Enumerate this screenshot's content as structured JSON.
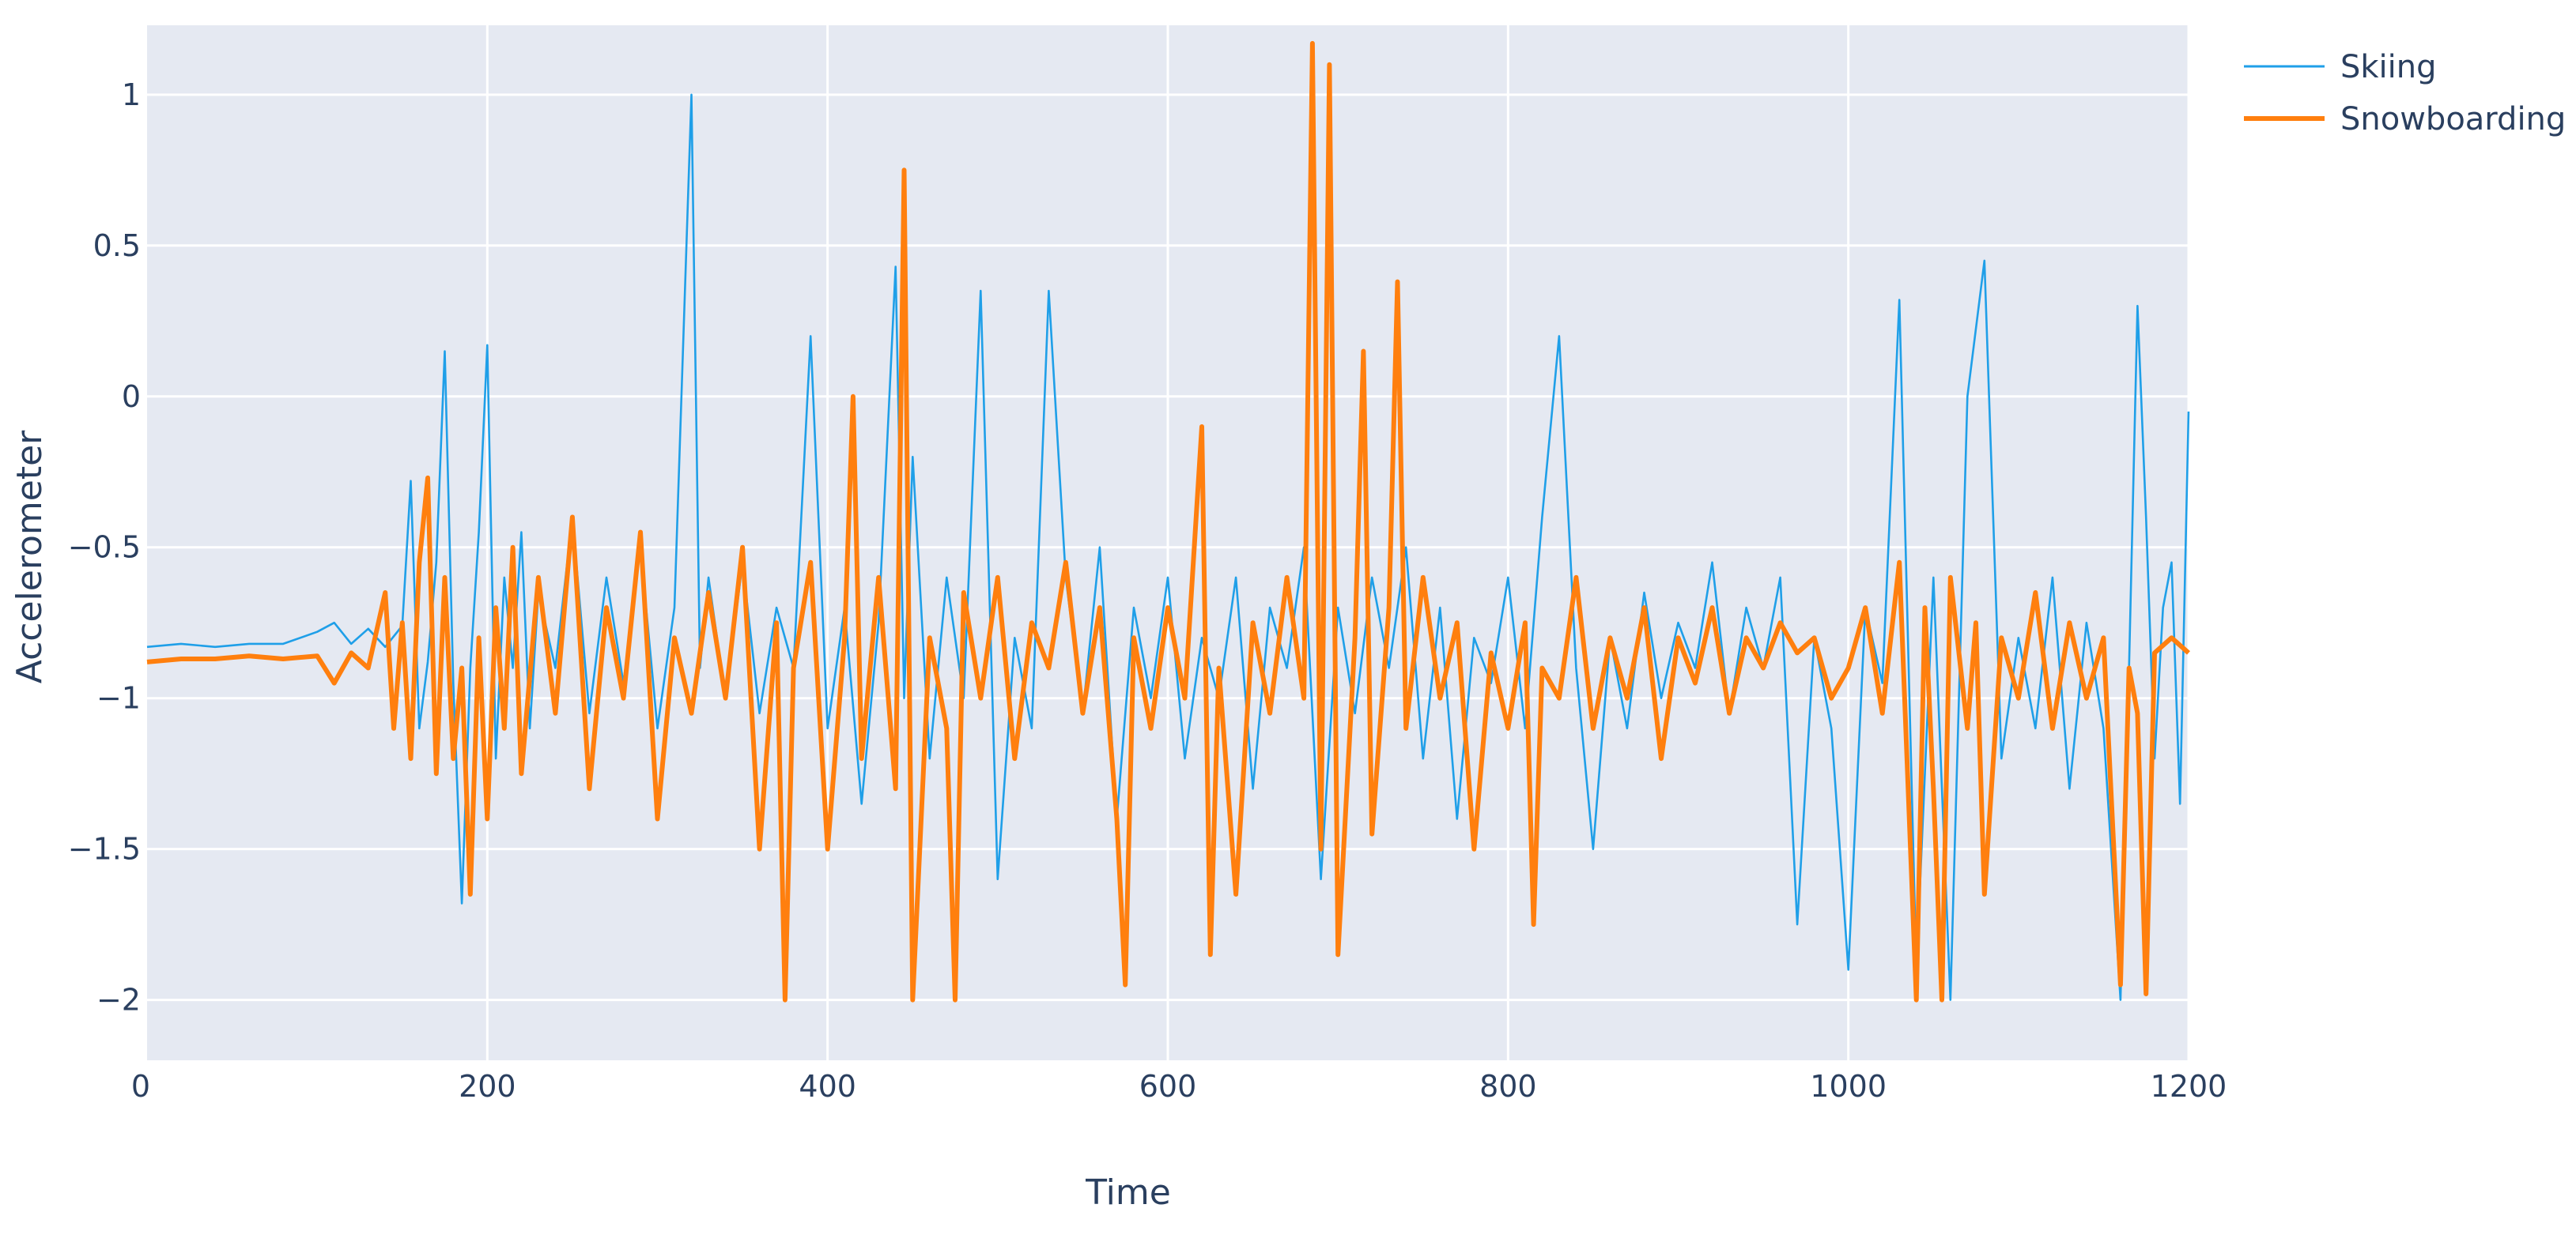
{
  "chart_data": {
    "type": "line",
    "title": "",
    "xlabel": "Time",
    "ylabel": "Accelerometer",
    "xlim": [
      0,
      1200
    ],
    "ylim": [
      -2.2,
      1.23
    ],
    "x_ticks": [
      0,
      200,
      400,
      600,
      800,
      1000,
      1200
    ],
    "y_ticks": [
      1,
      0.5,
      0,
      -0.5,
      -1,
      -1.5,
      -2
    ],
    "x_tick_labels": [
      "0",
      "200",
      "400",
      "600",
      "800",
      "1000",
      "1200"
    ],
    "y_tick_labels": [
      "1",
      "0.5",
      "0",
      "−0.5",
      "−1",
      "−1.5",
      "−2"
    ],
    "grid": true,
    "legend_position": "top-right",
    "plot_background": "#e5e9f2",
    "series": [
      {
        "name": "Skiing",
        "color": "#1f9fe8",
        "line_width": "thin",
        "points": [
          [
            0,
            -0.83
          ],
          [
            20,
            -0.82
          ],
          [
            40,
            -0.83
          ],
          [
            60,
            -0.82
          ],
          [
            80,
            -0.82
          ],
          [
            100,
            -0.78
          ],
          [
            110,
            -0.75
          ],
          [
            120,
            -0.82
          ],
          [
            130,
            -0.77
          ],
          [
            140,
            -0.83
          ],
          [
            150,
            -0.76
          ],
          [
            155,
            -0.28
          ],
          [
            160,
            -1.1
          ],
          [
            165,
            -0.88
          ],
          [
            170,
            -0.55
          ],
          [
            175,
            0.15
          ],
          [
            180,
            -0.95
          ],
          [
            185,
            -1.68
          ],
          [
            190,
            -0.9
          ],
          [
            195,
            -0.45
          ],
          [
            200,
            0.17
          ],
          [
            205,
            -1.2
          ],
          [
            210,
            -0.6
          ],
          [
            215,
            -0.9
          ],
          [
            220,
            -0.45
          ],
          [
            225,
            -1.1
          ],
          [
            230,
            -0.65
          ],
          [
            240,
            -0.9
          ],
          [
            250,
            -0.4
          ],
          [
            260,
            -1.05
          ],
          [
            270,
            -0.6
          ],
          [
            280,
            -0.95
          ],
          [
            290,
            -0.5
          ],
          [
            300,
            -1.1
          ],
          [
            310,
            -0.7
          ],
          [
            320,
            1.0
          ],
          [
            325,
            -0.9
          ],
          [
            330,
            -0.6
          ],
          [
            340,
            -1.0
          ],
          [
            350,
            -0.55
          ],
          [
            360,
            -1.05
          ],
          [
            370,
            -0.7
          ],
          [
            380,
            -0.9
          ],
          [
            390,
            0.2
          ],
          [
            400,
            -1.1
          ],
          [
            410,
            -0.7
          ],
          [
            420,
            -1.35
          ],
          [
            430,
            -0.75
          ],
          [
            440,
            0.43
          ],
          [
            445,
            -1.0
          ],
          [
            450,
            -0.2
          ],
          [
            460,
            -1.2
          ],
          [
            470,
            -0.6
          ],
          [
            480,
            -1.0
          ],
          [
            490,
            0.35
          ],
          [
            500,
            -1.6
          ],
          [
            510,
            -0.8
          ],
          [
            520,
            -1.1
          ],
          [
            530,
            0.35
          ],
          [
            540,
            -0.6
          ],
          [
            550,
            -1.05
          ],
          [
            560,
            -0.5
          ],
          [
            570,
            -1.4
          ],
          [
            580,
            -0.7
          ],
          [
            590,
            -1.0
          ],
          [
            600,
            -0.6
          ],
          [
            610,
            -1.2
          ],
          [
            620,
            -0.8
          ],
          [
            630,
            -1.0
          ],
          [
            640,
            -0.6
          ],
          [
            650,
            -1.3
          ],
          [
            660,
            -0.7
          ],
          [
            670,
            -0.9
          ],
          [
            680,
            -0.5
          ],
          [
            690,
            -1.6
          ],
          [
            700,
            -0.7
          ],
          [
            710,
            -1.05
          ],
          [
            720,
            -0.6
          ],
          [
            730,
            -0.9
          ],
          [
            740,
            -0.5
          ],
          [
            750,
            -1.2
          ],
          [
            760,
            -0.7
          ],
          [
            770,
            -1.4
          ],
          [
            780,
            -0.8
          ],
          [
            790,
            -0.95
          ],
          [
            800,
            -0.6
          ],
          [
            810,
            -1.1
          ],
          [
            820,
            -0.4
          ],
          [
            830,
            0.2
          ],
          [
            840,
            -0.9
          ],
          [
            850,
            -1.5
          ],
          [
            860,
            -0.8
          ],
          [
            870,
            -1.1
          ],
          [
            880,
            -0.65
          ],
          [
            890,
            -1.0
          ],
          [
            900,
            -0.75
          ],
          [
            910,
            -0.9
          ],
          [
            920,
            -0.55
          ],
          [
            930,
            -1.05
          ],
          [
            940,
            -0.7
          ],
          [
            950,
            -0.9
          ],
          [
            960,
            -0.6
          ],
          [
            970,
            -1.75
          ],
          [
            980,
            -0.8
          ],
          [
            990,
            -1.1
          ],
          [
            1000,
            -1.9
          ],
          [
            1010,
            -0.7
          ],
          [
            1020,
            -0.95
          ],
          [
            1030,
            0.32
          ],
          [
            1040,
            -1.9
          ],
          [
            1050,
            -0.6
          ],
          [
            1060,
            -2.0
          ],
          [
            1070,
            0.0
          ],
          [
            1080,
            0.45
          ],
          [
            1090,
            -1.2
          ],
          [
            1100,
            -0.8
          ],
          [
            1110,
            -1.1
          ],
          [
            1120,
            -0.6
          ],
          [
            1130,
            -1.3
          ],
          [
            1140,
            -0.75
          ],
          [
            1150,
            -1.1
          ],
          [
            1160,
            -2.0
          ],
          [
            1165,
            -0.9
          ],
          [
            1170,
            0.3
          ],
          [
            1175,
            -0.4
          ],
          [
            1180,
            -1.2
          ],
          [
            1185,
            -0.7
          ],
          [
            1190,
            -0.55
          ],
          [
            1195,
            -1.35
          ],
          [
            1200,
            -0.05
          ]
        ]
      },
      {
        "name": "Snowboarding",
        "color": "#ff7f0e",
        "line_width": "thick",
        "points": [
          [
            0,
            -0.88
          ],
          [
            20,
            -0.87
          ],
          [
            40,
            -0.87
          ],
          [
            60,
            -0.86
          ],
          [
            80,
            -0.87
          ],
          [
            100,
            -0.86
          ],
          [
            110,
            -0.95
          ],
          [
            120,
            -0.85
          ],
          [
            130,
            -0.9
          ],
          [
            140,
            -0.65
          ],
          [
            145,
            -1.1
          ],
          [
            150,
            -0.75
          ],
          [
            155,
            -1.2
          ],
          [
            160,
            -0.55
          ],
          [
            165,
            -0.27
          ],
          [
            170,
            -1.25
          ],
          [
            175,
            -0.6
          ],
          [
            180,
            -1.2
          ],
          [
            185,
            -0.9
          ],
          [
            190,
            -1.65
          ],
          [
            195,
            -0.8
          ],
          [
            200,
            -1.4
          ],
          [
            205,
            -0.7
          ],
          [
            210,
            -1.1
          ],
          [
            215,
            -0.5
          ],
          [
            220,
            -1.25
          ],
          [
            230,
            -0.6
          ],
          [
            240,
            -1.05
          ],
          [
            250,
            -0.4
          ],
          [
            260,
            -1.3
          ],
          [
            270,
            -0.7
          ],
          [
            280,
            -1.0
          ],
          [
            290,
            -0.45
          ],
          [
            300,
            -1.4
          ],
          [
            310,
            -0.8
          ],
          [
            320,
            -1.05
          ],
          [
            330,
            -0.65
          ],
          [
            340,
            -1.0
          ],
          [
            350,
            -0.5
          ],
          [
            360,
            -1.5
          ],
          [
            370,
            -0.75
          ],
          [
            375,
            -2.0
          ],
          [
            380,
            -0.9
          ],
          [
            390,
            -0.55
          ],
          [
            400,
            -1.5
          ],
          [
            410,
            -0.8
          ],
          [
            415,
            -0.0
          ],
          [
            420,
            -1.2
          ],
          [
            430,
            -0.6
          ],
          [
            440,
            -1.3
          ],
          [
            445,
            0.75
          ],
          [
            450,
            -2.0
          ],
          [
            460,
            -0.8
          ],
          [
            470,
            -1.1
          ],
          [
            475,
            -2.0
          ],
          [
            480,
            -0.65
          ],
          [
            490,
            -1.0
          ],
          [
            500,
            -0.6
          ],
          [
            510,
            -1.2
          ],
          [
            520,
            -0.75
          ],
          [
            530,
            -0.9
          ],
          [
            540,
            -0.55
          ],
          [
            550,
            -1.05
          ],
          [
            560,
            -0.7
          ],
          [
            570,
            -1.4
          ],
          [
            575,
            -1.95
          ],
          [
            580,
            -0.8
          ],
          [
            590,
            -1.1
          ],
          [
            600,
            -0.7
          ],
          [
            610,
            -1.0
          ],
          [
            620,
            -0.1
          ],
          [
            625,
            -1.85
          ],
          [
            630,
            -0.9
          ],
          [
            640,
            -1.65
          ],
          [
            650,
            -0.75
          ],
          [
            660,
            -1.05
          ],
          [
            670,
            -0.6
          ],
          [
            680,
            -1.0
          ],
          [
            685,
            1.17
          ],
          [
            690,
            -1.5
          ],
          [
            695,
            1.1
          ],
          [
            700,
            -1.85
          ],
          [
            710,
            -0.8
          ],
          [
            715,
            0.15
          ],
          [
            720,
            -1.45
          ],
          [
            730,
            -0.7
          ],
          [
            735,
            0.38
          ],
          [
            740,
            -1.1
          ],
          [
            750,
            -0.6
          ],
          [
            760,
            -1.0
          ],
          [
            770,
            -0.75
          ],
          [
            780,
            -1.5
          ],
          [
            790,
            -0.85
          ],
          [
            800,
            -1.1
          ],
          [
            810,
            -0.75
          ],
          [
            815,
            -1.75
          ],
          [
            820,
            -0.9
          ],
          [
            830,
            -1.0
          ],
          [
            840,
            -0.6
          ],
          [
            850,
            -1.1
          ],
          [
            860,
            -0.8
          ],
          [
            870,
            -1.0
          ],
          [
            880,
            -0.7
          ],
          [
            890,
            -1.2
          ],
          [
            900,
            -0.8
          ],
          [
            910,
            -0.95
          ],
          [
            920,
            -0.7
          ],
          [
            930,
            -1.05
          ],
          [
            940,
            -0.8
          ],
          [
            950,
            -0.9
          ],
          [
            960,
            -0.75
          ],
          [
            970,
            -0.85
          ],
          [
            980,
            -0.8
          ],
          [
            990,
            -1.0
          ],
          [
            1000,
            -0.9
          ],
          [
            1010,
            -0.7
          ],
          [
            1020,
            -1.05
          ],
          [
            1030,
            -0.55
          ],
          [
            1040,
            -2.0
          ],
          [
            1045,
            -0.7
          ],
          [
            1050,
            -1.3
          ],
          [
            1055,
            -2.0
          ],
          [
            1060,
            -0.6
          ],
          [
            1070,
            -1.1
          ],
          [
            1075,
            -0.75
          ],
          [
            1080,
            -1.65
          ],
          [
            1090,
            -0.8
          ],
          [
            1100,
            -1.0
          ],
          [
            1110,
            -0.65
          ],
          [
            1120,
            -1.1
          ],
          [
            1130,
            -0.75
          ],
          [
            1140,
            -1.0
          ],
          [
            1150,
            -0.8
          ],
          [
            1160,
            -1.95
          ],
          [
            1165,
            -0.9
          ],
          [
            1170,
            -1.05
          ],
          [
            1175,
            -1.98
          ],
          [
            1180,
            -0.85
          ],
          [
            1190,
            -0.8
          ],
          [
            1200,
            -0.85
          ]
        ]
      }
    ]
  }
}
